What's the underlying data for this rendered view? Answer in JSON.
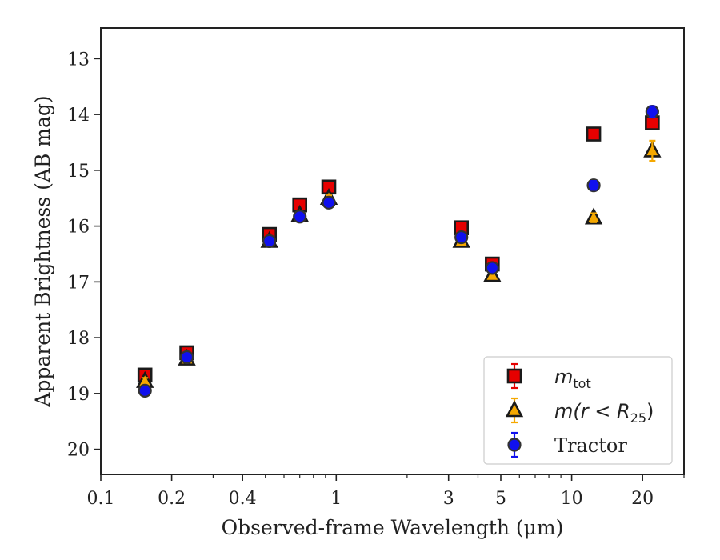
{
  "chart_data": {
    "type": "scatter",
    "xlabel": "Observed-frame Wavelength (μm)",
    "ylabel": "Apparent Brightness (AB mag)",
    "xscale": "log",
    "xlim": [
      0.1,
      30
    ],
    "ylim": [
      20.45,
      12.45
    ],
    "y_inverted": true,
    "x_ticks": [
      {
        "value": 0.1,
        "label": "0.1"
      },
      {
        "value": 0.2,
        "label": "0.2"
      },
      {
        "value": 0.4,
        "label": "0.4"
      },
      {
        "value": 1,
        "label": "1"
      },
      {
        "value": 3,
        "label": "3"
      },
      {
        "value": 5,
        "label": "5"
      },
      {
        "value": 10,
        "label": "10"
      },
      {
        "value": 20,
        "label": "20"
      }
    ],
    "y_ticks": [
      13,
      14,
      15,
      16,
      17,
      18,
      19,
      20
    ],
    "legend_position": "lower-right",
    "series": [
      {
        "name": "m_tot",
        "legend_label": {
          "main": "m",
          "sub": "tot"
        },
        "marker": "square",
        "fill": "#e60000",
        "errcolor": "#e60000",
        "points": [
          {
            "x": 0.154,
            "y": 18.67,
            "err": 0.06
          },
          {
            "x": 0.232,
            "y": 18.27,
            "err": 0.05
          },
          {
            "x": 0.52,
            "y": 16.15,
            "err": 0.05
          },
          {
            "x": 0.7,
            "y": 15.62,
            "err": 0.05
          },
          {
            "x": 0.93,
            "y": 15.3,
            "err": 0.05
          },
          {
            "x": 3.4,
            "y": 16.03,
            "err": 0.05
          },
          {
            "x": 4.6,
            "y": 16.68,
            "err": 0.05
          },
          {
            "x": 12.4,
            "y": 14.35,
            "err": 0.05
          },
          {
            "x": 22.0,
            "y": 14.15,
            "err": 0.05
          }
        ]
      },
      {
        "name": "m(r < R25)",
        "legend_label": {
          "main": "m(r < R",
          "sub": "25",
          "tail": ")"
        },
        "marker": "triangle",
        "fill": "#f5a800",
        "errcolor": "#f5a800",
        "points": [
          {
            "x": 0.154,
            "y": 18.78,
            "err": 0.06
          },
          {
            "x": 0.232,
            "y": 18.38,
            "err": 0.05
          },
          {
            "x": 0.52,
            "y": 16.27,
            "err": 0.05
          },
          {
            "x": 0.7,
            "y": 15.8,
            "err": 0.05
          },
          {
            "x": 0.93,
            "y": 15.5,
            "err": 0.05
          },
          {
            "x": 3.4,
            "y": 16.27,
            "err": 0.05
          },
          {
            "x": 4.6,
            "y": 16.88,
            "err": 0.05
          },
          {
            "x": 12.4,
            "y": 15.85,
            "err": 0.08
          },
          {
            "x": 22.0,
            "y": 14.65,
            "err": 0.18
          }
        ]
      },
      {
        "name": "Tractor",
        "legend_label": {
          "main": "Tractor"
        },
        "marker": "circle",
        "fill": "#1010ee",
        "errcolor": "#1010ee",
        "points": [
          {
            "x": 0.154,
            "y": 18.95,
            "err": 0.05
          },
          {
            "x": 0.232,
            "y": 18.35,
            "err": 0.05
          },
          {
            "x": 0.52,
            "y": 16.27,
            "err": 0.05
          },
          {
            "x": 0.7,
            "y": 15.83,
            "err": 0.05
          },
          {
            "x": 0.93,
            "y": 15.58,
            "err": 0.05
          },
          {
            "x": 3.4,
            "y": 16.2,
            "err": 0.05
          },
          {
            "x": 4.6,
            "y": 16.75,
            "err": 0.05
          },
          {
            "x": 12.4,
            "y": 15.27,
            "err": 0.08
          },
          {
            "x": 22.0,
            "y": 13.95,
            "err": 0.1
          }
        ]
      }
    ]
  }
}
